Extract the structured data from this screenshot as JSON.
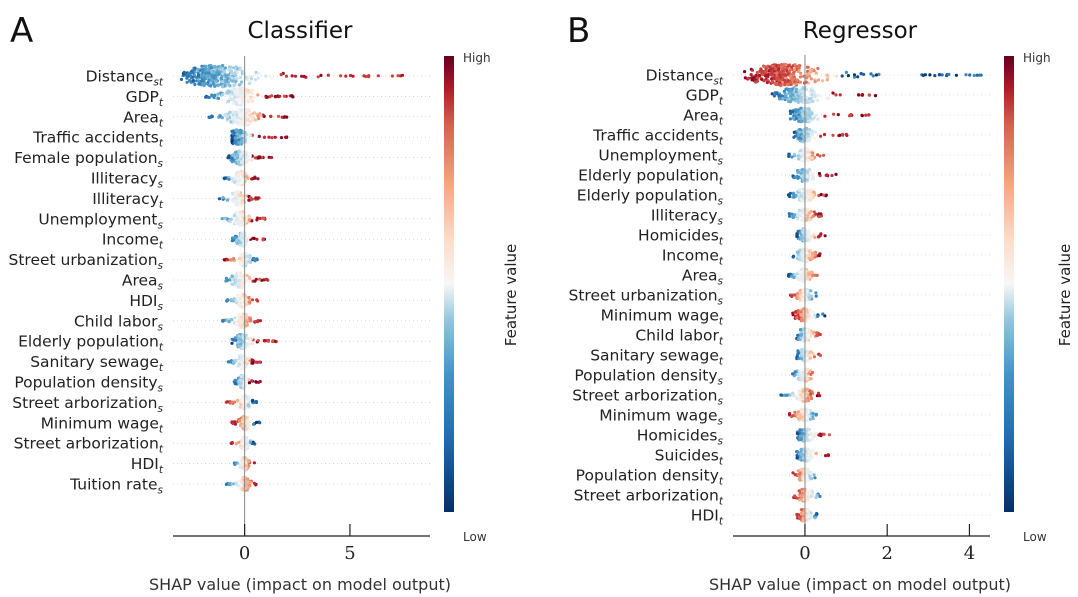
{
  "chart_data": [
    {
      "type": "scatter",
      "panel_letter": "A",
      "title": "Classifier",
      "xlabel": "SHAP value (impact on model output)",
      "xlim": [
        -3.4,
        8.8
      ],
      "xticks": [
        0,
        5
      ],
      "colorbar": {
        "label": "Feature value",
        "high": "High",
        "low": "Low"
      },
      "features": [
        {
          "base": "Distance",
          "sub": "st",
          "min": -3.0,
          "max": 8.3,
          "neg": "blue",
          "peak": -1.3
        },
        {
          "base": "GDP",
          "sub": "t",
          "min": -1.9,
          "max": 2.3,
          "neg": "blue",
          "peak": -0.2
        },
        {
          "base": "Area",
          "sub": "t",
          "min": -1.7,
          "max": 2.0,
          "neg": "blue",
          "peak": -0.1
        },
        {
          "base": "Traffic accidents",
          "sub": "t",
          "min": -0.6,
          "max": 2.0,
          "neg": "blue",
          "peak": -0.3
        },
        {
          "base": "Female population",
          "sub": "s",
          "min": -0.8,
          "max": 1.4,
          "neg": "blue",
          "peak": -0.2
        },
        {
          "base": "Illiteracy",
          "sub": "s",
          "min": -1.0,
          "max": 0.8,
          "neg": "blue",
          "peak": -0.2
        },
        {
          "base": "Illiteracy",
          "sub": "t",
          "min": -1.2,
          "max": 0.7,
          "neg": "blue",
          "peak": -0.3
        },
        {
          "base": "Unemployment",
          "sub": "s",
          "min": -1.2,
          "max": 1.0,
          "neg": "blue",
          "peak": -0.2
        },
        {
          "base": "Income",
          "sub": "t",
          "min": -0.6,
          "max": 1.0,
          "neg": "blue",
          "peak": -0.1
        },
        {
          "base": "Street urbanization",
          "sub": "s",
          "min": -1.0,
          "max": 0.6,
          "neg": "red",
          "peak": 0.0
        },
        {
          "base": "Area",
          "sub": "s",
          "min": -1.1,
          "max": 1.2,
          "neg": "blue",
          "peak": -0.2
        },
        {
          "base": "HDI",
          "sub": "s",
          "min": -0.9,
          "max": 0.7,
          "neg": "blue",
          "peak": -0.1
        },
        {
          "base": "Child labor",
          "sub": "s",
          "min": -1.1,
          "max": 0.8,
          "neg": "blue",
          "peak": -0.1
        },
        {
          "base": "Elderly population",
          "sub": "t",
          "min": -0.6,
          "max": 1.5,
          "neg": "blue",
          "peak": -0.1
        },
        {
          "base": "Sanitary sewage",
          "sub": "t",
          "min": -0.8,
          "max": 0.8,
          "neg": "blue",
          "peak": -0.1
        },
        {
          "base": "Population density",
          "sub": "s",
          "min": -0.5,
          "max": 0.8,
          "neg": "blue",
          "peak": -0.1
        },
        {
          "base": "Street arborization",
          "sub": "s",
          "min": -0.9,
          "max": 0.6,
          "neg": "red",
          "peak": 0.0
        },
        {
          "base": "Minimum wage",
          "sub": "t",
          "min": -0.6,
          "max": 0.8,
          "neg": "red",
          "peak": 0.0
        },
        {
          "base": "Street arborization",
          "sub": "t",
          "min": -0.7,
          "max": 0.5,
          "neg": "red",
          "peak": 0.0
        },
        {
          "base": "HDI",
          "sub": "t",
          "min": -0.6,
          "max": 0.5,
          "neg": "blue",
          "peak": 0.0
        },
        {
          "base": "Tuition rate",
          "sub": "s",
          "min": -0.9,
          "max": 0.6,
          "neg": "blue",
          "peak": 0.0
        }
      ]
    },
    {
      "type": "scatter",
      "panel_letter": "B",
      "title": "Regressor",
      "xlabel": "SHAP value (impact on model output)",
      "xlim": [
        -1.75,
        4.5
      ],
      "xticks": [
        0,
        2,
        4
      ],
      "colorbar": {
        "label": "Feature value",
        "high": "High",
        "low": "Low"
      },
      "features": [
        {
          "base": "Distance",
          "sub": "st",
          "min": -1.5,
          "max": 4.3,
          "neg": "red",
          "peak": -0.5
        },
        {
          "base": "GDP",
          "sub": "t",
          "min": -0.8,
          "max": 2.2,
          "neg": "blue",
          "peak": -0.1
        },
        {
          "base": "Area",
          "sub": "t",
          "min": -0.4,
          "max": 1.6,
          "neg": "blue",
          "peak": 0.0
        },
        {
          "base": "Traffic accidents",
          "sub": "t",
          "min": -0.3,
          "max": 1.1,
          "neg": "blue",
          "peak": 0.0
        },
        {
          "base": "Unemployment",
          "sub": "s",
          "min": -0.4,
          "max": 0.5,
          "neg": "blue",
          "peak": 0.0
        },
        {
          "base": "Elderly population",
          "sub": "t",
          "min": -0.3,
          "max": 0.9,
          "neg": "blue",
          "peak": 0.0
        },
        {
          "base": "Elderly population",
          "sub": "s",
          "min": -0.4,
          "max": 0.6,
          "neg": "blue",
          "peak": 0.0
        },
        {
          "base": "Illiteracy",
          "sub": "s",
          "min": -0.4,
          "max": 0.4,
          "neg": "blue",
          "peak": 0.0
        },
        {
          "base": "Homicides",
          "sub": "t",
          "min": -0.2,
          "max": 0.5,
          "neg": "blue",
          "peak": 0.0
        },
        {
          "base": "Income",
          "sub": "t",
          "min": -0.3,
          "max": 0.4,
          "neg": "blue",
          "peak": 0.0
        },
        {
          "base": "Area",
          "sub": "s",
          "min": -0.4,
          "max": 0.4,
          "neg": "blue",
          "peak": 0.0
        },
        {
          "base": "Street urbanization",
          "sub": "s",
          "min": -0.4,
          "max": 0.3,
          "neg": "red",
          "peak": 0.0
        },
        {
          "base": "Minimum wage",
          "sub": "t",
          "min": -0.3,
          "max": 0.5,
          "neg": "red",
          "peak": 0.0
        },
        {
          "base": "Child labor",
          "sub": "t",
          "min": -0.2,
          "max": 0.4,
          "neg": "blue",
          "peak": 0.0
        },
        {
          "base": "Sanitary sewage",
          "sub": "t",
          "min": -0.2,
          "max": 0.4,
          "neg": "blue",
          "peak": 0.0
        },
        {
          "base": "Population density",
          "sub": "s",
          "min": -0.3,
          "max": 0.3,
          "neg": "blue",
          "peak": 0.0
        },
        {
          "base": "Street arborization",
          "sub": "s",
          "min": -0.6,
          "max": 0.4,
          "neg": "blue",
          "peak": 0.0
        },
        {
          "base": "Minimum wage",
          "sub": "s",
          "min": -0.4,
          "max": 0.3,
          "neg": "red",
          "peak": 0.0
        },
        {
          "base": "Homicides",
          "sub": "s",
          "min": -0.2,
          "max": 0.7,
          "neg": "blue",
          "peak": 0.0
        },
        {
          "base": "Suicides",
          "sub": "t",
          "min": -0.2,
          "max": 0.6,
          "neg": "blue",
          "peak": 0.0
        },
        {
          "base": "Population density",
          "sub": "t",
          "min": -0.3,
          "max": 0.3,
          "neg": "red",
          "peak": 0.0
        },
        {
          "base": "Street arborization",
          "sub": "t",
          "min": -0.3,
          "max": 0.4,
          "neg": "red",
          "peak": 0.0
        },
        {
          "base": "HDI",
          "sub": "t",
          "min": -0.2,
          "max": 0.3,
          "neg": "red",
          "peak": 0.0
        }
      ]
    }
  ]
}
